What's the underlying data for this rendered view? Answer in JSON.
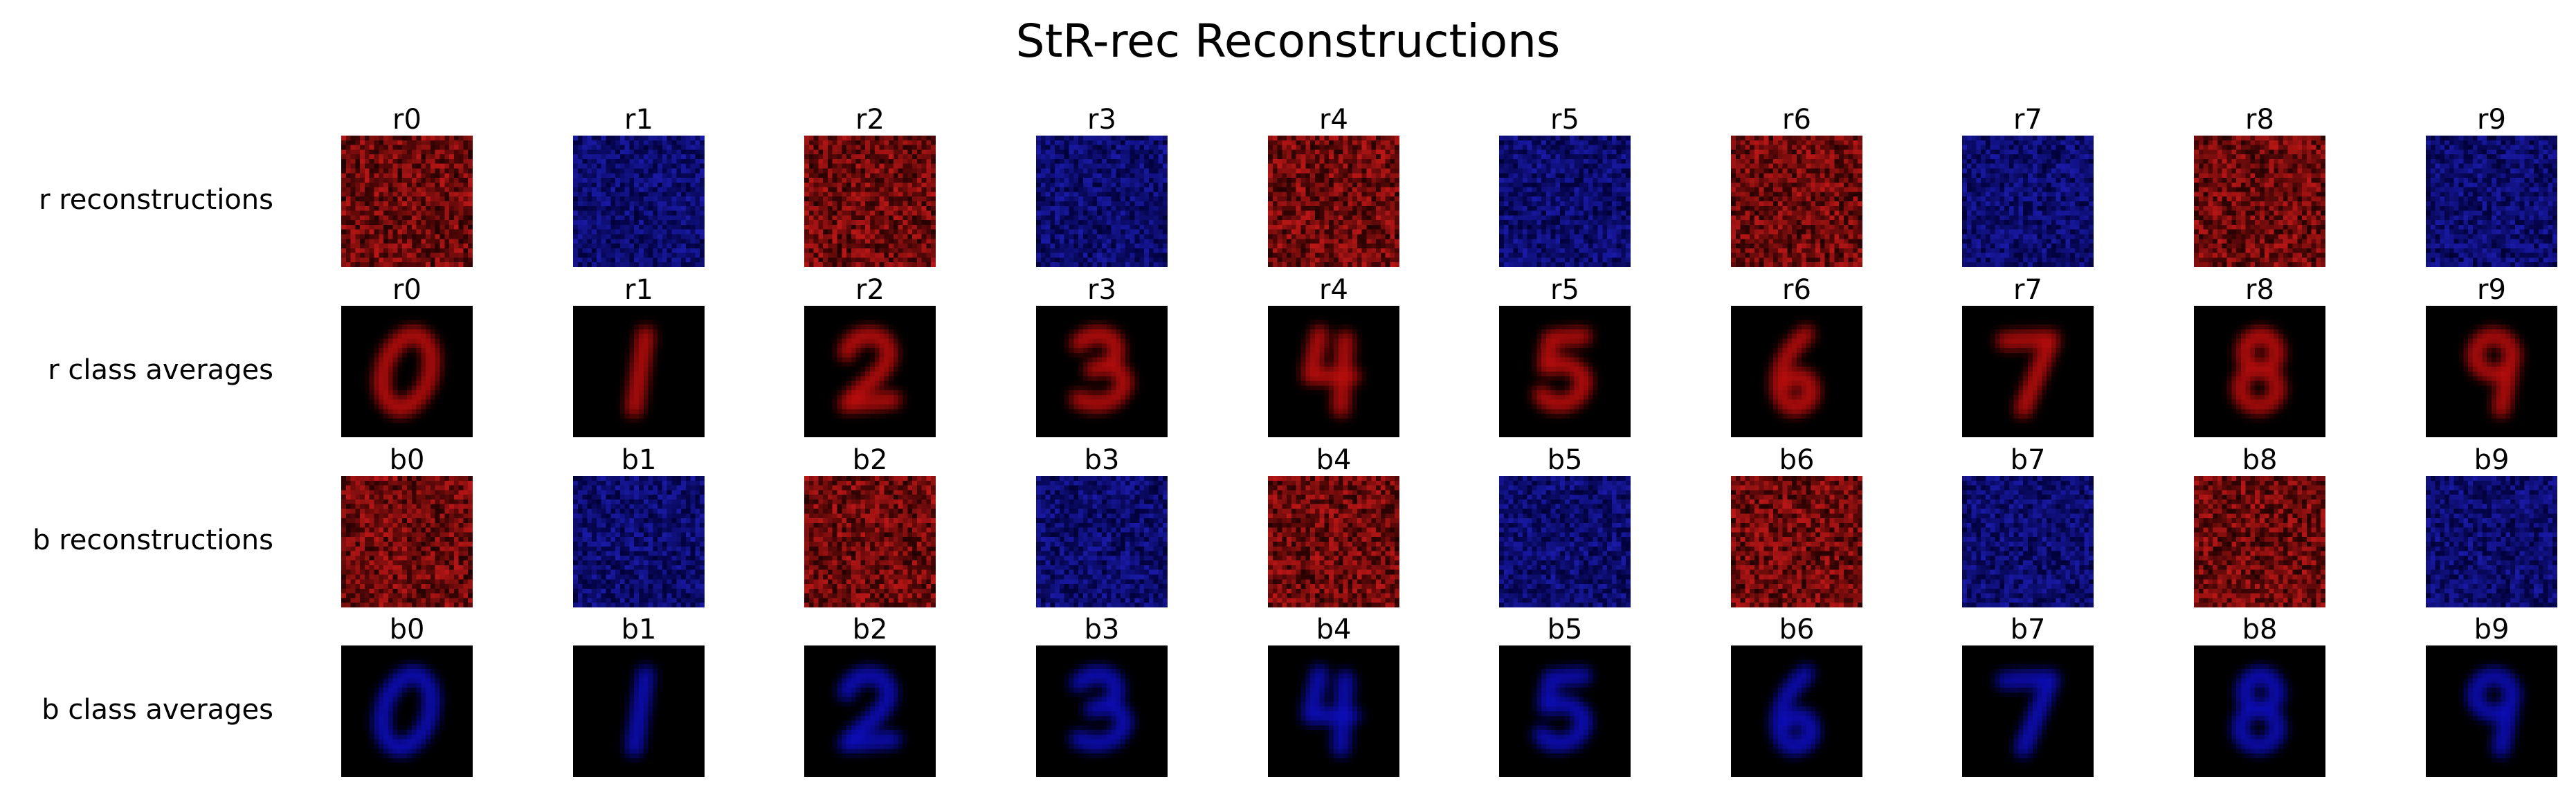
{
  "figure": {
    "title": "StR-rec Reconstructions"
  },
  "palette": {
    "red": "#e01010",
    "blue": "#1010e0",
    "background": "#000000"
  },
  "rows": [
    {
      "label": "r reconstructions",
      "kind": "noise",
      "panels": [
        {
          "title": "r0",
          "color": "red",
          "digit": 0
        },
        {
          "title": "r1",
          "color": "blue",
          "digit": 1
        },
        {
          "title": "r2",
          "color": "red",
          "digit": 2
        },
        {
          "title": "r3",
          "color": "blue",
          "digit": 3
        },
        {
          "title": "r4",
          "color": "red",
          "digit": 4
        },
        {
          "title": "r5",
          "color": "blue",
          "digit": 5
        },
        {
          "title": "r6",
          "color": "red",
          "digit": 6
        },
        {
          "title": "r7",
          "color": "blue",
          "digit": 7
        },
        {
          "title": "r8",
          "color": "red",
          "digit": 8
        },
        {
          "title": "r9",
          "color": "blue",
          "digit": 9
        }
      ]
    },
    {
      "label": "r class averages",
      "kind": "digit",
      "panels": [
        {
          "title": "r0",
          "color": "red",
          "digit": 0
        },
        {
          "title": "r1",
          "color": "red",
          "digit": 1
        },
        {
          "title": "r2",
          "color": "red",
          "digit": 2
        },
        {
          "title": "r3",
          "color": "red",
          "digit": 3
        },
        {
          "title": "r4",
          "color": "red",
          "digit": 4
        },
        {
          "title": "r5",
          "color": "red",
          "digit": 5
        },
        {
          "title": "r6",
          "color": "red",
          "digit": 6
        },
        {
          "title": "r7",
          "color": "red",
          "digit": 7
        },
        {
          "title": "r8",
          "color": "red",
          "digit": 8
        },
        {
          "title": "r9",
          "color": "red",
          "digit": 9
        }
      ]
    },
    {
      "label": "b reconstructions",
      "kind": "noise",
      "panels": [
        {
          "title": "b0",
          "color": "red",
          "digit": 0
        },
        {
          "title": "b1",
          "color": "blue",
          "digit": 1
        },
        {
          "title": "b2",
          "color": "red",
          "digit": 2
        },
        {
          "title": "b3",
          "color": "blue",
          "digit": 3
        },
        {
          "title": "b4",
          "color": "red",
          "digit": 4
        },
        {
          "title": "b5",
          "color": "blue",
          "digit": 5
        },
        {
          "title": "b6",
          "color": "red",
          "digit": 6
        },
        {
          "title": "b7",
          "color": "blue",
          "digit": 7
        },
        {
          "title": "b8",
          "color": "red",
          "digit": 8
        },
        {
          "title": "b9",
          "color": "blue",
          "digit": 9
        }
      ]
    },
    {
      "label": "b class averages",
      "kind": "digit",
      "panels": [
        {
          "title": "b0",
          "color": "blue",
          "digit": 0
        },
        {
          "title": "b1",
          "color": "blue",
          "digit": 1
        },
        {
          "title": "b2",
          "color": "blue",
          "digit": 2
        },
        {
          "title": "b3",
          "color": "blue",
          "digit": 3
        },
        {
          "title": "b4",
          "color": "blue",
          "digit": 4
        },
        {
          "title": "b5",
          "color": "blue",
          "digit": 5
        },
        {
          "title": "b6",
          "color": "blue",
          "digit": 6
        },
        {
          "title": "b7",
          "color": "blue",
          "digit": 7
        },
        {
          "title": "b8",
          "color": "blue",
          "digit": 8
        },
        {
          "title": "b9",
          "color": "blue",
          "digit": 9
        }
      ]
    }
  ]
}
